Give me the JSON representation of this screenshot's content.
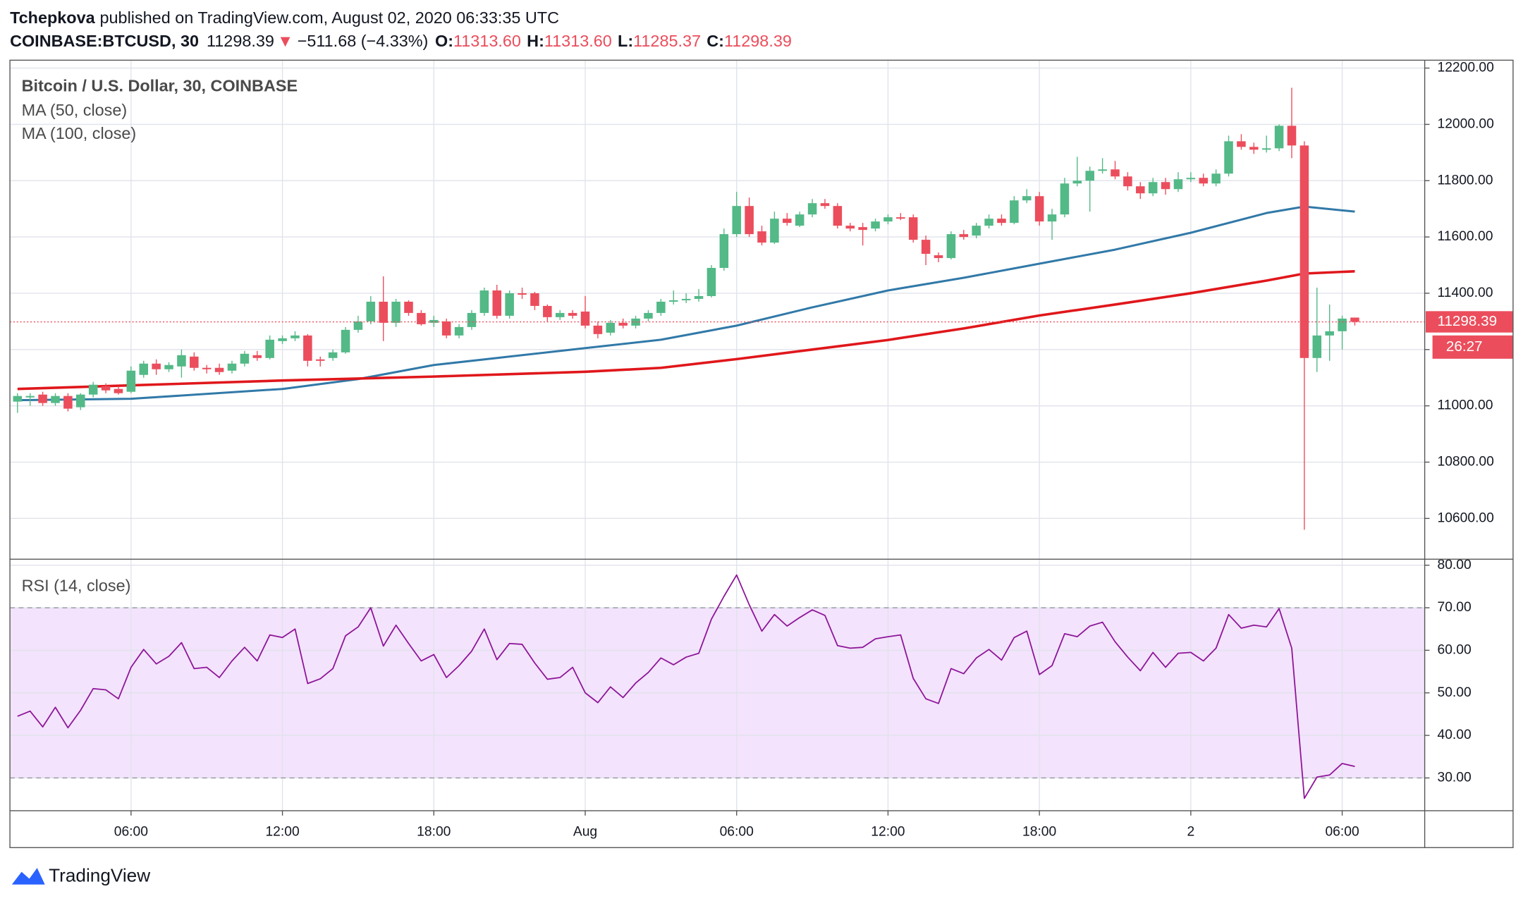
{
  "header": {
    "author": "Tchepkova",
    "published": "published on TradingView.com, August 02, 2020 06:33:35 UTC",
    "symbol": "COINBASE:BTCUSD, 30",
    "last": "11298.39",
    "arrow": "▼",
    "change": "−511.68 (−4.33%)",
    "ohlc": [
      {
        "label": "O:",
        "value": "11313.60"
      },
      {
        "label": "H:",
        "value": "11313.60"
      },
      {
        "label": "L:",
        "value": "11285.37"
      },
      {
        "label": "C:",
        "value": "11298.39"
      }
    ]
  },
  "chart_data": {
    "type": "candlestick",
    "title": "Bitcoin / U.S. Dollar, 30, COINBASE",
    "countdown": "26:27",
    "up_color": "#53b987",
    "down_color": "#eb4d5c",
    "grid": true,
    "x": [
      1.5,
      2,
      2.5,
      3,
      3.5,
      4,
      4.5,
      5,
      5.5,
      6,
      6.5,
      7,
      7.5,
      8,
      8.5,
      9,
      9.5,
      10,
      10.5,
      11,
      11.5,
      12,
      12.5,
      13,
      13.5,
      14,
      14.5,
      15,
      15.5,
      16,
      16.5,
      17,
      17.5,
      18,
      18.5,
      19,
      19.5,
      20,
      20.5,
      21,
      21.5,
      22,
      22.5,
      23,
      23.5,
      24,
      24.5,
      25,
      25.5,
      26,
      26.5,
      27,
      27.5,
      28,
      28.5,
      29,
      29.5,
      30,
      30.5,
      31,
      31.5,
      32,
      32.5,
      33,
      33.5,
      34,
      34.5,
      35,
      35.5,
      36,
      36.5,
      37,
      37.5,
      38,
      38.5,
      39,
      39.5,
      40,
      40.5,
      41,
      41.5,
      42,
      42.5,
      43,
      43.5,
      44,
      44.5,
      45,
      45.5,
      46,
      46.5,
      47,
      47.5,
      48,
      48.5,
      49,
      49.5,
      50,
      50.5,
      51,
      51.5,
      52,
      52.5,
      53,
      53.5,
      54,
      54.5
    ],
    "candles": [
      [
        11015,
        11045,
        10975,
        11035
      ],
      [
        11030,
        11045,
        11000,
        11035
      ],
      [
        11040,
        11050,
        11000,
        11010
      ],
      [
        11010,
        11045,
        11000,
        11035
      ],
      [
        11035,
        11045,
        10980,
        10990
      ],
      [
        10995,
        11045,
        10985,
        11040
      ],
      [
        11040,
        11085,
        11030,
        11075
      ],
      [
        11070,
        11080,
        11045,
        11055
      ],
      [
        11060,
        11070,
        11040,
        11045
      ],
      [
        11050,
        11140,
        11045,
        11125
      ],
      [
        11110,
        11160,
        11100,
        11150
      ],
      [
        11150,
        11165,
        11110,
        11130
      ],
      [
        11130,
        11155,
        11120,
        11145
      ],
      [
        11140,
        11200,
        11100,
        11180
      ],
      [
        11175,
        11190,
        11125,
        11135
      ],
      [
        11135,
        11145,
        11115,
        11130
      ],
      [
        11135,
        11150,
        11110,
        11120
      ],
      [
        11125,
        11160,
        11115,
        11150
      ],
      [
        11150,
        11195,
        11140,
        11185
      ],
      [
        11180,
        11195,
        11160,
        11170
      ],
      [
        11170,
        11250,
        11165,
        11235
      ],
      [
        11230,
        11250,
        11220,
        11240
      ],
      [
        11240,
        11265,
        11230,
        11250
      ],
      [
        11250,
        11255,
        11140,
        11160
      ],
      [
        11165,
        11175,
        11140,
        11160
      ],
      [
        11170,
        11200,
        11160,
        11190
      ],
      [
        11190,
        11280,
        11185,
        11270
      ],
      [
        11270,
        11320,
        11260,
        11300
      ],
      [
        11300,
        11390,
        11290,
        11370
      ],
      [
        11370,
        11460,
        11230,
        11295
      ],
      [
        11295,
        11380,
        11280,
        11370
      ],
      [
        11370,
        11375,
        11320,
        11330
      ],
      [
        11330,
        11340,
        11285,
        11290
      ],
      [
        11295,
        11320,
        11280,
        11305
      ],
      [
        11300,
        11310,
        11240,
        11250
      ],
      [
        11250,
        11290,
        11240,
        11280
      ],
      [
        11280,
        11340,
        11270,
        11330
      ],
      [
        11330,
        11420,
        11320,
        11410
      ],
      [
        11410,
        11430,
        11310,
        11320
      ],
      [
        11320,
        11410,
        11310,
        11400
      ],
      [
        11400,
        11420,
        11380,
        11395
      ],
      [
        11400,
        11405,
        11340,
        11355
      ],
      [
        11355,
        11360,
        11300,
        11315
      ],
      [
        11315,
        11340,
        11305,
        11330
      ],
      [
        11330,
        11340,
        11310,
        11320
      ],
      [
        11335,
        11390,
        11275,
        11285
      ],
      [
        11285,
        11300,
        11240,
        11255
      ],
      [
        11260,
        11305,
        11250,
        11295
      ],
      [
        11295,
        11310,
        11275,
        11285
      ],
      [
        11285,
        11320,
        11275,
        11310
      ],
      [
        11310,
        11340,
        11300,
        11330
      ],
      [
        11330,
        11380,
        11320,
        11370
      ],
      [
        11370,
        11410,
        11360,
        11375
      ],
      [
        11375,
        11400,
        11365,
        11380
      ],
      [
        11380,
        11415,
        11370,
        11390
      ],
      [
        11390,
        11500,
        11385,
        11490
      ],
      [
        11490,
        11630,
        11480,
        11610
      ],
      [
        11610,
        11760,
        11600,
        11710
      ],
      [
        11710,
        11740,
        11600,
        11610
      ],
      [
        11620,
        11640,
        11570,
        11580
      ],
      [
        11580,
        11690,
        11575,
        11665
      ],
      [
        11665,
        11685,
        11640,
        11650
      ],
      [
        11640,
        11690,
        11635,
        11680
      ],
      [
        11680,
        11735,
        11670,
        11720
      ],
      [
        11720,
        11735,
        11700,
        11710
      ],
      [
        11710,
        11720,
        11630,
        11640
      ],
      [
        11640,
        11650,
        11620,
        11630
      ],
      [
        11635,
        11650,
        11570,
        11625
      ],
      [
        11630,
        11665,
        11620,
        11655
      ],
      [
        11655,
        11680,
        11645,
        11670
      ],
      [
        11670,
        11685,
        11660,
        11665
      ],
      [
        11670,
        11680,
        11580,
        11590
      ],
      [
        11590,
        11605,
        11500,
        11540
      ],
      [
        11535,
        11545,
        11510,
        11525
      ],
      [
        11525,
        11620,
        11520,
        11610
      ],
      [
        11610,
        11625,
        11590,
        11600
      ],
      [
        11605,
        11650,
        11595,
        11640
      ],
      [
        11640,
        11680,
        11630,
        11665
      ],
      [
        11665,
        11680,
        11640,
        11650
      ],
      [
        11650,
        11745,
        11645,
        11730
      ],
      [
        11730,
        11770,
        11720,
        11745
      ],
      [
        11745,
        11760,
        11640,
        11655
      ],
      [
        11655,
        11700,
        11590,
        11680
      ],
      [
        11680,
        11810,
        11670,
        11790
      ],
      [
        11790,
        11885,
        11780,
        11800
      ],
      [
        11800,
        11850,
        11690,
        11835
      ],
      [
        11835,
        11880,
        11825,
        11840
      ],
      [
        11840,
        11870,
        11805,
        11815
      ],
      [
        11815,
        11830,
        11765,
        11780
      ],
      [
        11780,
        11795,
        11735,
        11755
      ],
      [
        11755,
        11810,
        11745,
        11795
      ],
      [
        11795,
        11810,
        11750,
        11770
      ],
      [
        11770,
        11830,
        11760,
        11805
      ],
      [
        11805,
        11830,
        11795,
        11810
      ],
      [
        11810,
        11825,
        11780,
        11790
      ],
      [
        11790,
        11840,
        11780,
        11825
      ],
      [
        11825,
        11960,
        11815,
        11940
      ],
      [
        11940,
        11965,
        11910,
        11920
      ],
      [
        11920,
        11935,
        11895,
        11910
      ],
      [
        11910,
        11960,
        11900,
        11915
      ],
      [
        11915,
        12000,
        11905,
        11995
      ],
      [
        11995,
        12130,
        11880,
        11925
      ],
      [
        11925,
        11940,
        10560,
        11170
      ],
      [
        11170,
        11420,
        11120,
        11250
      ],
      [
        11250,
        11360,
        11160,
        11265
      ],
      [
        11265,
        11320,
        11200,
        11310
      ],
      [
        11313.6,
        11313.6,
        11285.37,
        11298.39
      ]
    ],
    "moving_averages": [
      {
        "name": "MA (50, close)",
        "color": "#3179a8",
        "x": [
          1.5,
          6,
          12,
          15,
          18,
          21,
          24,
          27,
          30,
          33,
          36,
          39,
          42,
          45,
          48,
          51,
          52.5,
          54.5
        ],
        "values": [
          11020,
          11025,
          11060,
          11095,
          11145,
          11175,
          11205,
          11235,
          11285,
          11350,
          11410,
          11455,
          11505,
          11555,
          11615,
          11685,
          11708,
          11690
        ]
      },
      {
        "name": "MA (100, close)",
        "color": "#e0171b",
        "x": [
          1.5,
          12,
          18,
          24,
          27,
          30,
          33,
          36,
          39,
          42,
          45,
          48,
          51,
          52.5,
          54.5
        ],
        "values": [
          11060,
          11090,
          11104,
          11121,
          11135,
          11166,
          11200,
          11234,
          11275,
          11321,
          11360,
          11400,
          11445,
          11470,
          11478
        ]
      }
    ],
    "xlim": [
      1.2,
      57.27
    ],
    "xticks": [
      {
        "value": 6,
        "label": "06:00"
      },
      {
        "value": 12,
        "label": "12:00"
      },
      {
        "value": 18,
        "label": "18:00"
      },
      {
        "value": 24,
        "label": "Aug"
      },
      {
        "value": 30,
        "label": "06:00"
      },
      {
        "value": 36,
        "label": "12:00"
      },
      {
        "value": 42,
        "label": "18:00"
      },
      {
        "value": 48,
        "label": "2"
      },
      {
        "value": 54,
        "label": "06:00"
      }
    ],
    "ylim": [
      10455,
      12228
    ],
    "yticks": [
      {
        "value": 10600,
        "label": "10600.00"
      },
      {
        "value": 10800,
        "label": "10800.00"
      },
      {
        "value": 11000,
        "label": "11000.00"
      },
      {
        "value": 11200,
        "label": "11200.00"
      },
      {
        "value": 11400,
        "label": "11400.00"
      },
      {
        "value": 11600,
        "label": "11600.00"
      },
      {
        "value": 11800,
        "label": "11800.00"
      },
      {
        "value": 12000,
        "label": "12000.00"
      },
      {
        "value": 12200,
        "label": "12200.00"
      }
    ],
    "rsi": {
      "name": "RSI (14, close)",
      "color": "#8e1599",
      "band": [
        30,
        70
      ],
      "band_color": "#f3e3fc",
      "values": [
        44.5,
        45.7,
        42,
        46.6,
        41.8,
        45.9,
        51,
        50.7,
        48.6,
        56,
        60.2,
        56.8,
        58.6,
        61.8,
        55.7,
        56,
        53.6,
        57.5,
        60.7,
        57.5,
        63.6,
        63,
        65,
        52.2,
        53.3,
        55.7,
        63.4,
        65.5,
        70,
        61,
        65.9,
        61.6,
        57.5,
        59,
        53.6,
        56.4,
        59.8,
        65,
        57.8,
        61.6,
        61.4,
        57,
        53.2,
        53.6,
        56,
        50,
        47.7,
        51.4,
        48.9,
        52.3,
        54.8,
        58.2,
        56.6,
        58.4,
        59.3,
        67.3,
        72.7,
        77.7,
        70.7,
        64.5,
        68.4,
        65.7,
        67.7,
        69.5,
        68.2,
        61.1,
        60.5,
        60.7,
        62.7,
        63.2,
        63.6,
        53.4,
        48.6,
        47.5,
        55.7,
        54.5,
        58.2,
        60.2,
        57.7,
        63,
        64.5,
        54.3,
        56.4,
        63.9,
        63.2,
        65.7,
        66.6,
        62,
        58.4,
        55.2,
        59.5,
        56,
        59.3,
        59.5,
        57.5,
        60.5,
        68.4,
        65.2,
        65.9,
        65.5,
        69.8,
        60.5,
        25.2,
        30.2,
        30.7,
        33.4,
        32.7
      ],
      "ylim": [
        22.3,
        81.4
      ],
      "yticks": [
        {
          "value": 30,
          "label": "30.00"
        },
        {
          "value": 40,
          "label": "40.00"
        },
        {
          "value": 50,
          "label": "50.00"
        },
        {
          "value": 60,
          "label": "60.00"
        },
        {
          "value": 70,
          "label": "70.00"
        },
        {
          "value": 80,
          "label": "80.00"
        }
      ]
    }
  },
  "footer": {
    "brand": "TradingView"
  }
}
